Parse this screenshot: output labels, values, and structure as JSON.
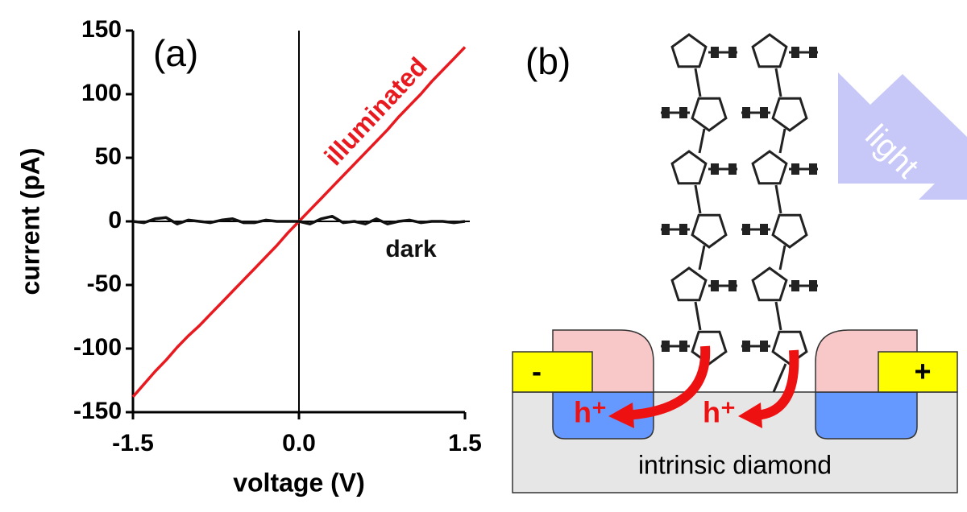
{
  "chart_data": {
    "type": "line",
    "annotations": [
      "(a)"
    ],
    "x_label": "voltage (V)",
    "y_label": "current (pA)",
    "x": [
      -1.5,
      -1.4,
      -1.3,
      -1.2,
      -1.1,
      -1.0,
      -0.9,
      -0.8,
      -0.7,
      -0.6,
      -0.5,
      -0.4,
      -0.3,
      -0.2,
      -0.1,
      0,
      0.1,
      0.2,
      0.3,
      0.4,
      0.5,
      0.6,
      0.7,
      0.8,
      0.9,
      1.0,
      1.1,
      1.2,
      1.3,
      1.4,
      1.5
    ],
    "series": [
      {
        "name": "illuminated",
        "color": "#e8191f",
        "values": [
          -138,
          -128,
          -118,
          -109,
          -99,
          -90,
          -82,
          -73,
          -64,
          -55,
          -46,
          -37,
          -28,
          -19,
          -9,
          0,
          9,
          18,
          27,
          36,
          45,
          54,
          63,
          72,
          82,
          91,
          100,
          110,
          119,
          128,
          137
        ]
      },
      {
        "name": "dark",
        "color": "#111111",
        "values": [
          0,
          -1,
          2,
          3,
          -2,
          1,
          0,
          -1,
          1,
          2,
          -1,
          -1,
          1,
          0,
          0,
          0,
          -2,
          2,
          4,
          -1,
          0,
          -2,
          2,
          -2,
          0,
          1,
          -1,
          0,
          0,
          -1,
          0
        ]
      }
    ],
    "xlim": [
      -1.5,
      1.5
    ],
    "xticks": [
      -1.5,
      {
        "value": 0,
        "label": "0.0"
      },
      1.5
    ],
    "ylim": [
      -150,
      150
    ],
    "yticks": [
      -150,
      -100,
      -50,
      0,
      50,
      100,
      150
    ]
  },
  "diagram": {
    "label": "(b)",
    "light": "light",
    "hole_left": "h⁺",
    "hole_right": "h⁺",
    "contact_left": "-",
    "contact_right": "+",
    "substrate": "intrinsic diamond"
  }
}
